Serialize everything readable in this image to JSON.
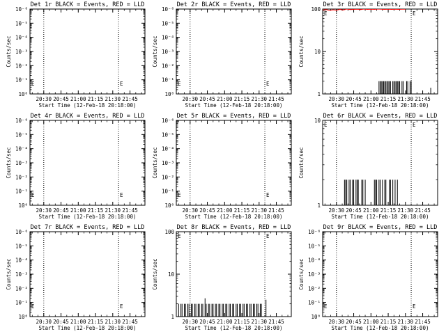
{
  "chart_data": [
    {
      "type": "line",
      "title": "Det 1r BLACK = Events, RED = LLD",
      "xlabel": "Start Time (12-Feb-18 20:18:00)",
      "ylabel": "Counts/sec",
      "x_ticks": [
        "20:30",
        "20:45",
        "21:00",
        "21:15",
        "21:30",
        "21:45"
      ],
      "x_range": [
        "20:18",
        "21:58"
      ],
      "y_scale": "log",
      "y_ticks": [
        "10⁰",
        "10⁻¹",
        "10⁻²",
        "10⁻³",
        "10⁻⁴",
        "10⁻⁵",
        "10⁻⁶"
      ],
      "y_range": [
        1e-06,
        1
      ],
      "vlines": [
        "20:30",
        "21:35"
      ],
      "markers": [
        "E",
        "E"
      ],
      "series": []
    },
    {
      "type": "line",
      "title": "Det 2r BLACK = Events, RED = LLD",
      "xlabel": "Start Time (12-Feb-18 20:18:00)",
      "ylabel": "Counts/sec",
      "x_ticks": [
        "20:30",
        "20:45",
        "21:00",
        "21:15",
        "21:30",
        "21:45"
      ],
      "x_range": [
        "20:18",
        "21:58"
      ],
      "y_scale": "log",
      "y_ticks": [
        "10⁰",
        "10⁻¹",
        "10⁻²",
        "10⁻³",
        "10⁻⁴",
        "10⁻⁵",
        "10⁻⁶"
      ],
      "y_range": [
        1e-06,
        1
      ],
      "vlines": [
        "20:30",
        "21:35"
      ],
      "markers": [
        "E",
        "E"
      ],
      "series": []
    },
    {
      "type": "line",
      "title": "Det 3r BLACK = Events, RED = LLD",
      "xlabel": "Start Time (12-Feb-18 20:18:00)",
      "ylabel": "Counts/sec",
      "x_ticks": [
        "20:30",
        "20:45",
        "21:00",
        "21:15",
        "21:30",
        "21:45"
      ],
      "x_range": [
        "20:18",
        "21:58"
      ],
      "y_scale": "log",
      "y_ticks": [
        "1",
        "10",
        "100"
      ],
      "y_range": [
        1,
        100
      ],
      "vlines": [
        "20:30",
        "21:35"
      ],
      "markers": [
        "E",
        "E"
      ],
      "series": [
        {
          "color": "#000000",
          "style": "spikes",
          "values": [
            [
              "21:07",
              2
            ],
            [
              "21:08",
              2
            ],
            [
              "21:09",
              2
            ],
            [
              "21:10",
              2
            ],
            [
              "21:11",
              2
            ],
            [
              "21:12",
              2
            ],
            [
              "21:13",
              2
            ],
            [
              "21:14",
              2
            ],
            [
              "21:15",
              2
            ],
            [
              "21:16",
              2
            ],
            [
              "21:17",
              2
            ],
            [
              "21:19",
              2
            ],
            [
              "21:20",
              2
            ],
            [
              "21:21",
              2
            ],
            [
              "21:22",
              2
            ],
            [
              "21:23",
              2
            ],
            [
              "21:24",
              2
            ],
            [
              "21:25",
              2
            ],
            [
              "21:27",
              2
            ],
            [
              "21:28",
              2
            ],
            [
              "21:31",
              2
            ],
            [
              "21:32",
              2
            ],
            [
              "21:34",
              2
            ],
            [
              "21:35",
              2
            ],
            [
              "21:52",
              1.4
            ]
          ]
        },
        {
          "color": "#ff0000",
          "style": "line",
          "values": [
            [
              "20:18",
              95
            ],
            [
              "20:21",
              97
            ],
            [
              "20:24",
              93
            ],
            [
              "20:27",
              96
            ],
            [
              "20:30",
              94
            ],
            [
              "20:33",
              98
            ],
            [
              "20:36",
              95
            ],
            [
              "20:39",
              100
            ],
            [
              "20:42",
              97
            ],
            [
              "20:45",
              98
            ],
            [
              "20:48",
              99
            ],
            [
              "20:51",
              97
            ],
            [
              "20:54",
              100
            ],
            [
              "20:57",
              98
            ],
            [
              "21:00",
              99
            ],
            [
              "21:03",
              98
            ],
            [
              "21:06",
              100
            ],
            [
              "21:09",
              99
            ],
            [
              "21:12",
              98
            ],
            [
              "21:15",
              99
            ],
            [
              "21:18",
              98
            ],
            [
              "21:21",
              99
            ],
            [
              "21:24",
              98
            ],
            [
              "21:27",
              99
            ],
            [
              "21:30",
              99
            ]
          ]
        }
      ]
    },
    {
      "type": "line",
      "title": "Det 4r BLACK = Events, RED = LLD",
      "xlabel": "Start Time (12-Feb-18 20:18:00)",
      "ylabel": "Counts/sec",
      "x_ticks": [
        "20:30",
        "20:45",
        "21:00",
        "21:15",
        "21:30",
        "21:45"
      ],
      "x_range": [
        "20:18",
        "21:58"
      ],
      "y_scale": "log",
      "y_ticks": [
        "10⁰",
        "10⁻¹",
        "10⁻²",
        "10⁻³",
        "10⁻⁴",
        "10⁻⁵",
        "10⁻⁶"
      ],
      "y_range": [
        1e-06,
        1
      ],
      "vlines": [
        "20:30",
        "21:35"
      ],
      "markers": [
        "E",
        "E"
      ],
      "series": []
    },
    {
      "type": "line",
      "title": "Det 5r BLACK = Events, RED = LLD",
      "xlabel": "Start Time (12-Feb-18 20:18:00)",
      "ylabel": "Counts/sec",
      "x_ticks": [
        "20:30",
        "20:45",
        "21:00",
        "21:15",
        "21:30",
        "21:45"
      ],
      "x_range": [
        "20:18",
        "21:58"
      ],
      "y_scale": "log",
      "y_ticks": [
        "10⁰",
        "10⁻¹",
        "10⁻²",
        "10⁻³",
        "10⁻⁴",
        "10⁻⁵",
        "10⁻⁶"
      ],
      "y_range": [
        1e-06,
        1
      ],
      "vlines": [
        "20:30",
        "21:35"
      ],
      "markers": [
        "E",
        "E"
      ],
      "series": []
    },
    {
      "type": "line",
      "title": "Det 6r BLACK = Events, RED = LLD",
      "xlabel": "Start Time (12-Feb-18 20:18:00)",
      "ylabel": "Counts/sec",
      "x_ticks": [
        "20:30",
        "20:45",
        "21:00",
        "21:15",
        "21:30",
        "21:45"
      ],
      "x_range": [
        "20:18",
        "21:58"
      ],
      "y_scale": "log",
      "y_ticks": [
        "1",
        "10"
      ],
      "y_range": [
        1,
        10
      ],
      "vlines": [
        "20:30",
        "21:35"
      ],
      "markers": [
        "E",
        "E"
      ],
      "series": [
        {
          "color": "#000000",
          "style": "spikes",
          "values": [
            [
              "20:37",
              2
            ],
            [
              "20:38",
              2
            ],
            [
              "20:39",
              2
            ],
            [
              "20:41",
              2
            ],
            [
              "20:42",
              2
            ],
            [
              "20:44",
              2
            ],
            [
              "20:45",
              2
            ],
            [
              "20:47",
              2
            ],
            [
              "20:48",
              2
            ],
            [
              "20:49",
              2
            ],
            [
              "20:52",
              2
            ],
            [
              "20:53",
              2
            ],
            [
              "20:55",
              2
            ],
            [
              "21:03",
              2
            ],
            [
              "21:04",
              2
            ],
            [
              "21:05",
              2
            ],
            [
              "21:07",
              2
            ],
            [
              "21:08",
              2
            ],
            [
              "21:10",
              2
            ],
            [
              "21:12",
              2
            ],
            [
              "21:13",
              2
            ],
            [
              "21:16",
              2
            ],
            [
              "21:17",
              2
            ],
            [
              "21:19",
              2
            ],
            [
              "21:21",
              2
            ],
            [
              "21:23",
              2
            ]
          ]
        }
      ]
    },
    {
      "type": "line",
      "title": "Det 7r BLACK = Events, RED = LLD",
      "xlabel": "Start Time (12-Feb-18 20:18:00)",
      "ylabel": "Counts/sec",
      "x_ticks": [
        "20:30",
        "20:45",
        "21:00",
        "21:15",
        "21:30",
        "21:45"
      ],
      "x_range": [
        "20:18",
        "21:58"
      ],
      "y_scale": "log",
      "y_ticks": [
        "10⁰",
        "10⁻¹",
        "10⁻²",
        "10⁻³",
        "10⁻⁴",
        "10⁻⁵",
        "10⁻⁶"
      ],
      "y_range": [
        1e-06,
        1
      ],
      "vlines": [
        "20:30",
        "21:35"
      ],
      "markers": [
        "E",
        "E"
      ],
      "series": []
    },
    {
      "type": "line",
      "title": "Det 8r BLACK = Events, RED = LLD",
      "xlabel": "Start Time (12-Feb-18 20:18:00)",
      "ylabel": "Counts/sec",
      "x_ticks": [
        "20:30",
        "20:45",
        "21:00",
        "21:15",
        "21:30",
        "21:45"
      ],
      "x_range": [
        "20:18",
        "21:58"
      ],
      "y_scale": "log",
      "y_ticks": [
        "1",
        "10",
        "100"
      ],
      "y_range": [
        1,
        100
      ],
      "vlines": [
        "20:30",
        "21:35"
      ],
      "markers": [
        "E",
        "E"
      ],
      "series": [
        {
          "color": "#000000",
          "style": "spikes",
          "values": [
            [
              "20:18",
              2
            ],
            [
              "20:20",
              2
            ],
            [
              "20:22",
              2
            ],
            [
              "20:23",
              2
            ],
            [
              "20:25",
              2
            ],
            [
              "20:26",
              2
            ],
            [
              "20:28",
              2
            ],
            [
              "20:29",
              2
            ],
            [
              "20:31",
              2
            ],
            [
              "20:32",
              2
            ],
            [
              "20:34",
              2
            ],
            [
              "20:35",
              2
            ],
            [
              "20:37",
              2
            ],
            [
              "20:38",
              2
            ],
            [
              "20:40",
              2
            ],
            [
              "20:41",
              2
            ],
            [
              "20:43",
              2.7
            ],
            [
              "20:44",
              2
            ],
            [
              "20:46",
              2
            ],
            [
              "20:47",
              2
            ],
            [
              "20:49",
              2
            ],
            [
              "20:50",
              2
            ],
            [
              "20:52",
              2
            ],
            [
              "20:53",
              2
            ],
            [
              "20:55",
              2
            ],
            [
              "20:56",
              2
            ],
            [
              "20:58",
              2
            ],
            [
              "20:59",
              2
            ],
            [
              "21:01",
              2
            ],
            [
              "21:02",
              2
            ],
            [
              "21:04",
              2
            ],
            [
              "21:05",
              2
            ],
            [
              "21:07",
              2
            ],
            [
              "21:08",
              2
            ],
            [
              "21:10",
              2
            ],
            [
              "21:11",
              2
            ],
            [
              "21:13",
              2
            ],
            [
              "21:14",
              2
            ],
            [
              "21:16",
              2
            ],
            [
              "21:17",
              2
            ],
            [
              "21:19",
              2
            ],
            [
              "21:20",
              2
            ],
            [
              "21:22",
              2
            ],
            [
              "21:23",
              2
            ],
            [
              "21:25",
              2
            ],
            [
              "21:26",
              2
            ],
            [
              "21:28",
              2
            ],
            [
              "21:29",
              2
            ],
            [
              "21:31",
              2
            ],
            [
              "21:32",
              2
            ],
            [
              "21:36",
              2.5
            ]
          ]
        }
      ]
    },
    {
      "type": "line",
      "title": "Det 9r BLACK = Events, RED = LLD",
      "xlabel": "Start Time (12-Feb-18 20:18:00)",
      "ylabel": "Counts/sec",
      "x_ticks": [
        "20:30",
        "20:45",
        "21:00",
        "21:15",
        "21:30",
        "21:45"
      ],
      "x_range": [
        "20:18",
        "21:58"
      ],
      "y_scale": "log",
      "y_ticks": [
        "10⁰",
        "10⁻¹",
        "10⁻²",
        "10⁻³",
        "10⁻⁴",
        "10⁻⁵",
        "10⁻⁶"
      ],
      "y_range": [
        1e-06,
        1
      ],
      "vlines": [
        "20:30",
        "21:35"
      ],
      "markers": [
        "E",
        "E"
      ],
      "series": []
    }
  ]
}
